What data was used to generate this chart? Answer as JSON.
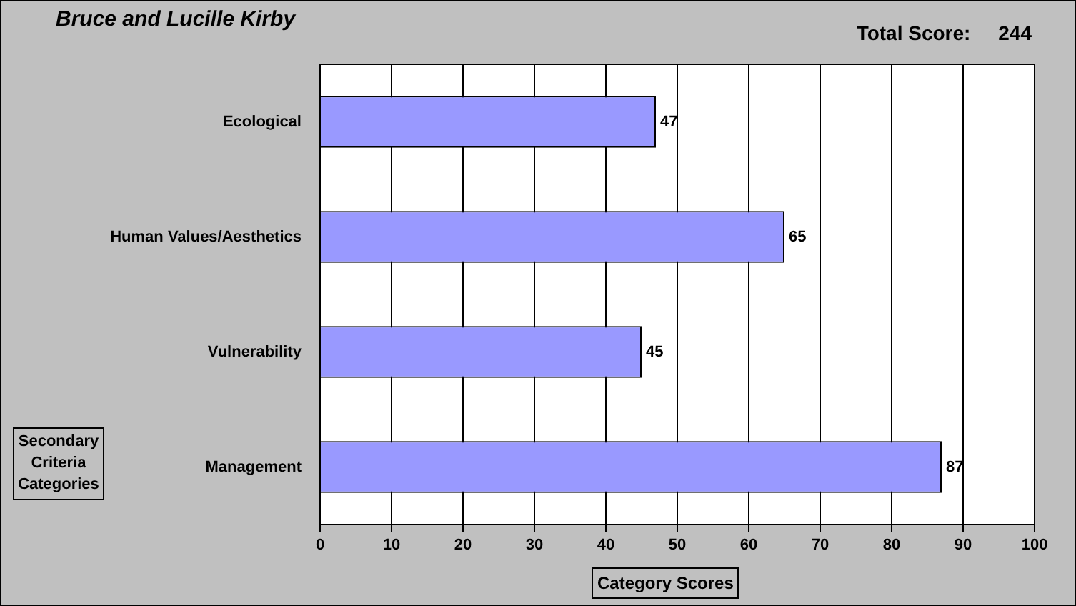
{
  "chart_data": {
    "type": "bar",
    "orientation": "horizontal",
    "title": "Bruce and Lucille Kirby",
    "annotations": [
      "Total Score:     244"
    ],
    "xlabel": "Category Scores",
    "ylabel": "Secondary Criteria Categories",
    "categories": [
      "Ecological",
      "Human Values/Aesthetics",
      "Vulnerability",
      "Management"
    ],
    "values": [
      47,
      65,
      45,
      87
    ],
    "color": "#9999ff",
    "xlim": [
      0,
      100
    ],
    "xticks": [
      0,
      10,
      20,
      30,
      40,
      50,
      60,
      70,
      80,
      90,
      100
    ],
    "grid": "x",
    "data_labels": true,
    "legend": false
  }
}
